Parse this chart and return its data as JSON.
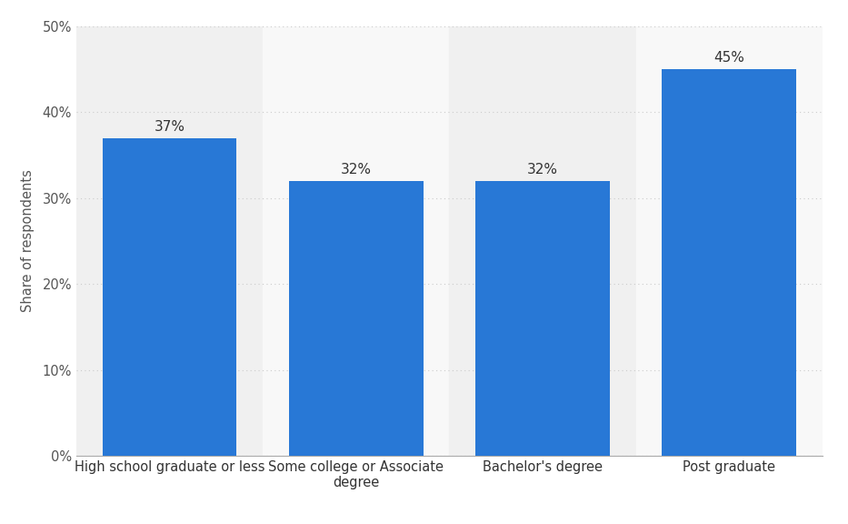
{
  "categories": [
    "High school graduate or less",
    "Some college or Associate\ndegree",
    "Bachelor's degree",
    "Post graduate"
  ],
  "values": [
    37,
    32,
    32,
    45
  ],
  "bar_color": "#2878d6",
  "ylabel": "Share of respondents",
  "ylim": [
    0,
    50
  ],
  "yticks": [
    0,
    10,
    20,
    30,
    40,
    50
  ],
  "bar_width": 0.72,
  "background_color": "#ffffff",
  "plot_bg_odd": "#f0f0f0",
  "plot_bg_even": "#f8f8f8",
  "grid_color": "#cccccc",
  "label_fontsize": 10.5,
  "tick_fontsize": 10.5,
  "ylabel_fontsize": 10.5,
  "value_label_fontsize": 11,
  "value_label_color": "#333333"
}
